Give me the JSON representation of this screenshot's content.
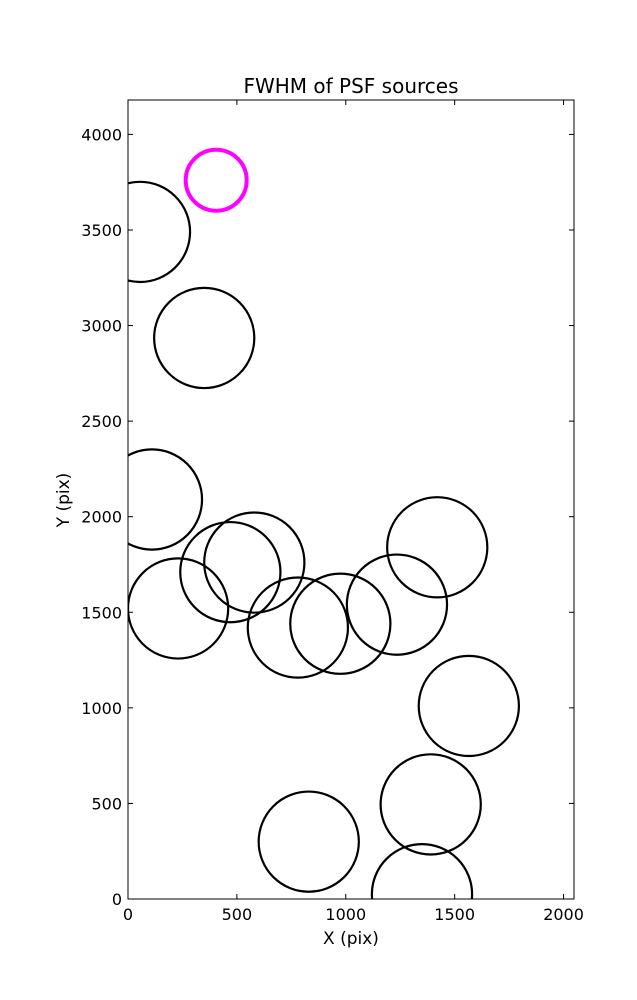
{
  "chart_data": {
    "type": "scatter",
    "title": "FWHM of PSF sources",
    "xlabel": "X (pix)",
    "ylabel": "Y (pix)",
    "xlim": [
      0,
      2048
    ],
    "ylim": [
      0,
      4180
    ],
    "xticks": [
      0,
      500,
      1000,
      1500,
      2000
    ],
    "yticks": [
      0,
      500,
      1000,
      1500,
      2000,
      2500,
      3000,
      3500,
      4000
    ],
    "grid": false,
    "marker": "circle",
    "series": [
      {
        "color": "#000000",
        "points": [
          {
            "x": 55,
            "y": 3490,
            "r": 230
          },
          {
            "x": 350,
            "y": 2935,
            "r": 230
          },
          {
            "x": 110,
            "y": 2090,
            "r": 230
          },
          {
            "x": 230,
            "y": 1520,
            "r": 230
          },
          {
            "x": 470,
            "y": 1710,
            "r": 230
          },
          {
            "x": 580,
            "y": 1760,
            "r": 230
          },
          {
            "x": 780,
            "y": 1420,
            "r": 230
          },
          {
            "x": 975,
            "y": 1440,
            "r": 230
          },
          {
            "x": 1235,
            "y": 1540,
            "r": 230
          },
          {
            "x": 1420,
            "y": 1840,
            "r": 230
          },
          {
            "x": 1565,
            "y": 1010,
            "r": 230
          },
          {
            "x": 1390,
            "y": 495,
            "r": 230
          },
          {
            "x": 830,
            "y": 300,
            "r": 230
          },
          {
            "x": 1350,
            "y": 25,
            "r": 230
          }
        ]
      },
      {
        "color": "#ff00ff",
        "points": [
          {
            "x": 405,
            "y": 3760,
            "r": 140
          }
        ]
      }
    ]
  }
}
